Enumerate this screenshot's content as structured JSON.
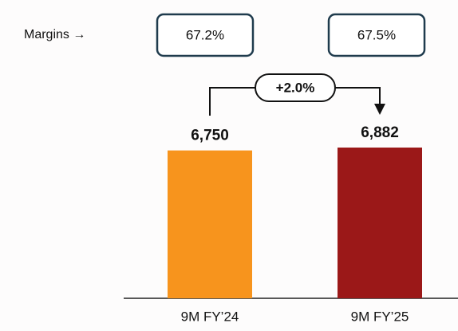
{
  "chart_data": {
    "type": "bar",
    "categories": [
      "9M FY’24",
      "9M FY’25"
    ],
    "values": [
      6750,
      6882
    ],
    "value_labels": [
      "6,750",
      "6,882"
    ],
    "colors": [
      "#f7941d",
      "#9b1818"
    ],
    "margins_label": "Margins →",
    "margin_labels": [
      "67.2%",
      "67.5%"
    ],
    "growth_label": "+2.0%"
  }
}
